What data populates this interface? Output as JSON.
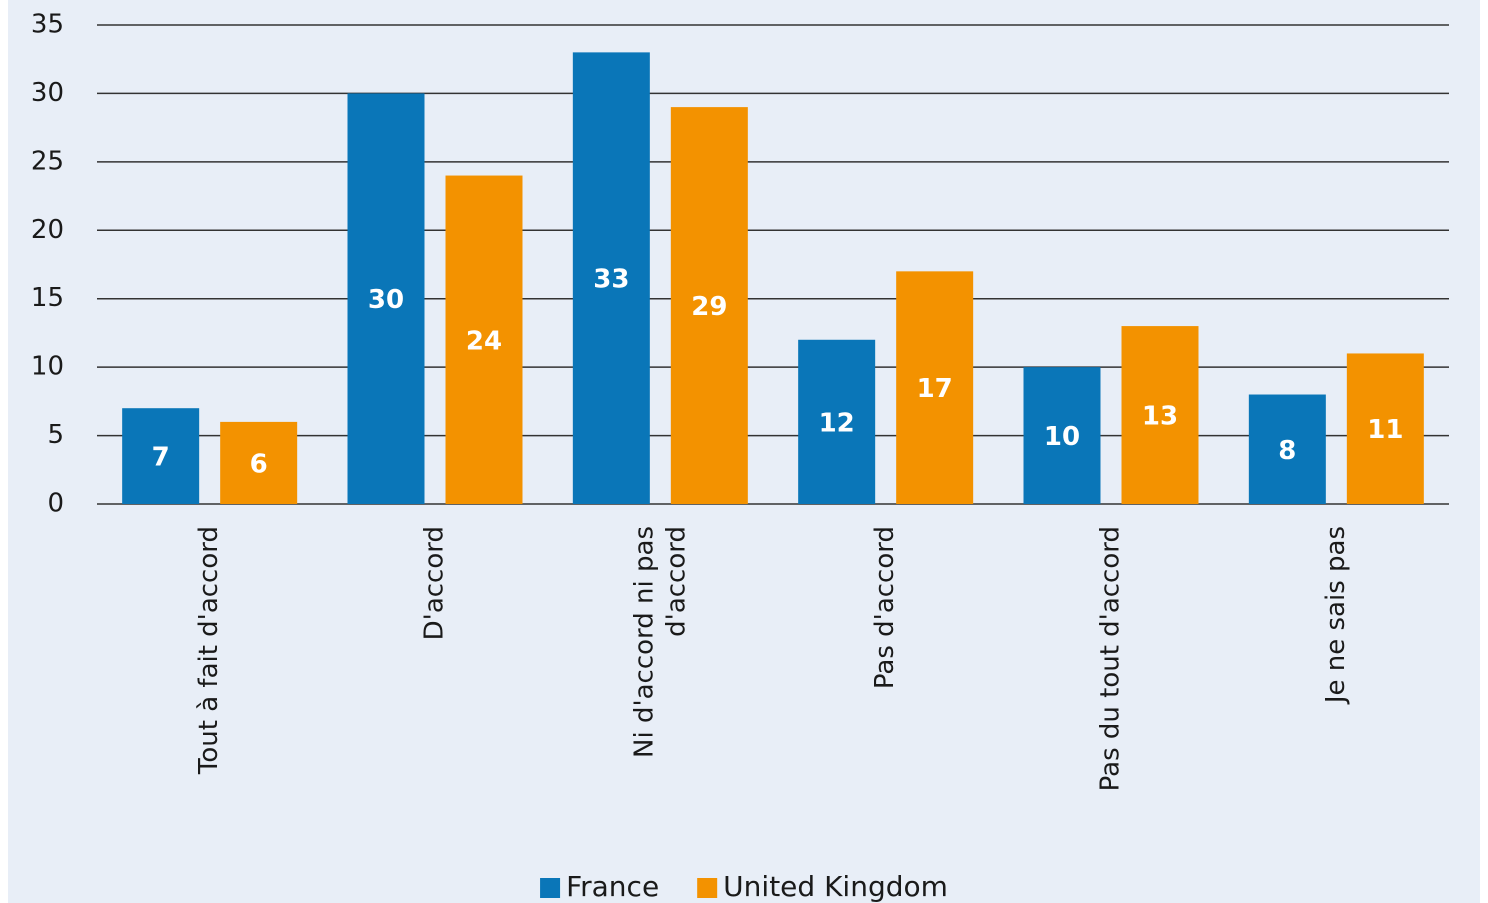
{
  "chart_data": {
    "type": "bar",
    "categories": [
      "Tout à fait d'accord",
      "D'accord",
      "Ni d'accord ni pas d'accord",
      "Pas d'accord",
      "Pas du tout d'accord",
      "Je ne sais pas"
    ],
    "series": [
      {
        "name": "France",
        "color": "#0a76b8",
        "values": [
          7,
          30,
          33,
          12,
          10,
          8
        ]
      },
      {
        "name": "United Kingdom",
        "color": "#f39200",
        "values": [
          6,
          24,
          29,
          17,
          13,
          11
        ]
      }
    ],
    "ylim": [
      0,
      35
    ],
    "yticks": [
      0,
      5,
      10,
      15,
      20,
      25,
      30,
      35
    ],
    "grid": true,
    "legend": "bottom"
  }
}
